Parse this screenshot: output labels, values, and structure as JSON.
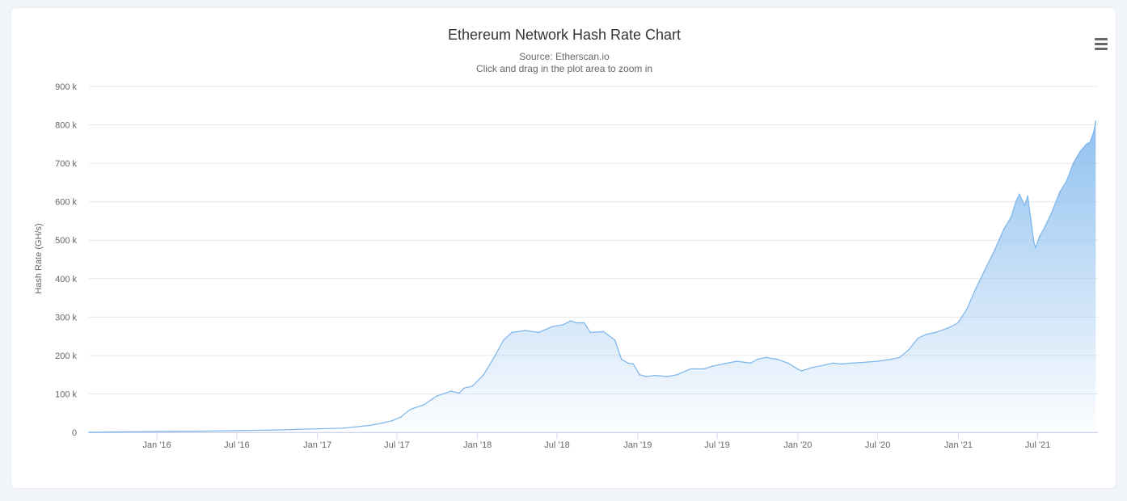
{
  "colors": {
    "series": "#7cb5ec",
    "area_top": "#7cb5ec",
    "grid": "#e6e6e6",
    "text": "#333333",
    "muted": "#666666"
  },
  "menu": {
    "icon": "hamburger-menu-icon"
  },
  "chart_data": {
    "type": "area",
    "title": "Ethereum Network Hash Rate Chart",
    "subtitle_lines": [
      "Source: Etherscan.io",
      "Click and drag in the plot area to zoom in"
    ],
    "xlabel": "",
    "ylabel": "Hash Rate (GH/s)",
    "ylim": [
      0,
      900000
    ],
    "yticks": [
      {
        "v": 0,
        "label": "0"
      },
      {
        "v": 100000,
        "label": "100 k"
      },
      {
        "v": 200000,
        "label": "200 k"
      },
      {
        "v": 300000,
        "label": "300 k"
      },
      {
        "v": 400000,
        "label": "400 k"
      },
      {
        "v": 500000,
        "label": "500 k"
      },
      {
        "v": 600000,
        "label": "600 k"
      },
      {
        "v": 700000,
        "label": "700 k"
      },
      {
        "v": 800000,
        "label": "800 k"
      },
      {
        "v": 900000,
        "label": "900 k"
      }
    ],
    "xlim": [
      "2015-07-30",
      "2021-11-15"
    ],
    "xticks": [
      {
        "date": "2016-01-01",
        "label": "Jan '16"
      },
      {
        "date": "2016-07-01",
        "label": "Jul '16"
      },
      {
        "date": "2017-01-01",
        "label": "Jan '17"
      },
      {
        "date": "2017-07-01",
        "label": "Jul '17"
      },
      {
        "date": "2018-01-01",
        "label": "Jan '18"
      },
      {
        "date": "2018-07-01",
        "label": "Jul '18"
      },
      {
        "date": "2019-01-01",
        "label": "Jan '19"
      },
      {
        "date": "2019-07-01",
        "label": "Jul '19"
      },
      {
        "date": "2020-01-01",
        "label": "Jan '20"
      },
      {
        "date": "2020-07-01",
        "label": "Jul '20"
      },
      {
        "date": "2021-01-01",
        "label": "Jan '21"
      },
      {
        "date": "2021-07-01",
        "label": "Jul '21"
      }
    ],
    "grid": true,
    "legend": "none",
    "series": [
      {
        "x": [
          "2015-07-30",
          "2015-10-01",
          "2016-01-01",
          "2016-04-01",
          "2016-07-01",
          "2016-10-01",
          "2016-11-01",
          "2016-11-20",
          "2017-01-01",
          "2017-03-01",
          "2017-05-01",
          "2017-06-01",
          "2017-06-20",
          "2017-07-10",
          "2017-08-01",
          "2017-09-01",
          "2017-09-20",
          "2017-10-01",
          "2017-10-15",
          "2017-11-01",
          "2017-11-20",
          "2017-12-01",
          "2017-12-20",
          "2018-01-15",
          "2018-02-10",
          "2018-03-01",
          "2018-03-20",
          "2018-04-20",
          "2018-05-20",
          "2018-06-20",
          "2018-07-15",
          "2018-08-01",
          "2018-08-15",
          "2018-09-01",
          "2018-09-15",
          "2018-10-15",
          "2018-11-10",
          "2018-11-25",
          "2018-12-10",
          "2018-12-22",
          "2019-01-05",
          "2019-01-20",
          "2019-02-10",
          "2019-03-10",
          "2019-04-01",
          "2019-05-01",
          "2019-06-01",
          "2019-06-20",
          "2019-07-15",
          "2019-08-15",
          "2019-09-15",
          "2019-10-01",
          "2019-10-20",
          "2019-11-15",
          "2019-12-10",
          "2019-12-31",
          "2020-01-10",
          "2020-02-01",
          "2020-03-01",
          "2020-03-20",
          "2020-04-10",
          "2020-05-01",
          "2020-06-01",
          "2020-07-01",
          "2020-08-01",
          "2020-08-20",
          "2020-09-10",
          "2020-10-01",
          "2020-10-20",
          "2020-11-10",
          "2020-12-10",
          "2020-12-31",
          "2021-01-20",
          "2021-02-10",
          "2021-03-01",
          "2021-03-25",
          "2021-04-15",
          "2021-05-01",
          "2021-05-12",
          "2021-05-20",
          "2021-06-01",
          "2021-06-08",
          "2021-06-15",
          "2021-06-22",
          "2021-06-26",
          "2021-07-05",
          "2021-07-15",
          "2021-08-01",
          "2021-08-20",
          "2021-09-05",
          "2021-09-20",
          "2021-10-05",
          "2021-10-20",
          "2021-10-28",
          "2021-11-05",
          "2021-11-10"
        ],
        "values": [
          0,
          1000,
          2000,
          3000,
          4500,
          6000,
          7000,
          8000,
          9000,
          11000,
          18000,
          25000,
          30000,
          40000,
          60000,
          72000,
          87000,
          95000,
          100000,
          107000,
          102000,
          115000,
          120000,
          150000,
          200000,
          240000,
          260000,
          265000,
          260000,
          275000,
          280000,
          290000,
          285000,
          285000,
          260000,
          262000,
          240000,
          190000,
          180000,
          178000,
          150000,
          145000,
          148000,
          145000,
          150000,
          165000,
          165000,
          172000,
          178000,
          185000,
          180000,
          190000,
          195000,
          190000,
          180000,
          165000,
          160000,
          168000,
          175000,
          180000,
          178000,
          180000,
          182000,
          185000,
          190000,
          195000,
          215000,
          245000,
          255000,
          260000,
          272000,
          285000,
          320000,
          375000,
          420000,
          475000,
          530000,
          560000,
          600000,
          620000,
          590000,
          615000,
          555000,
          495000,
          480000,
          510000,
          530000,
          570000,
          625000,
          655000,
          700000,
          730000,
          750000,
          755000,
          780000,
          810000
        ]
      }
    ]
  }
}
